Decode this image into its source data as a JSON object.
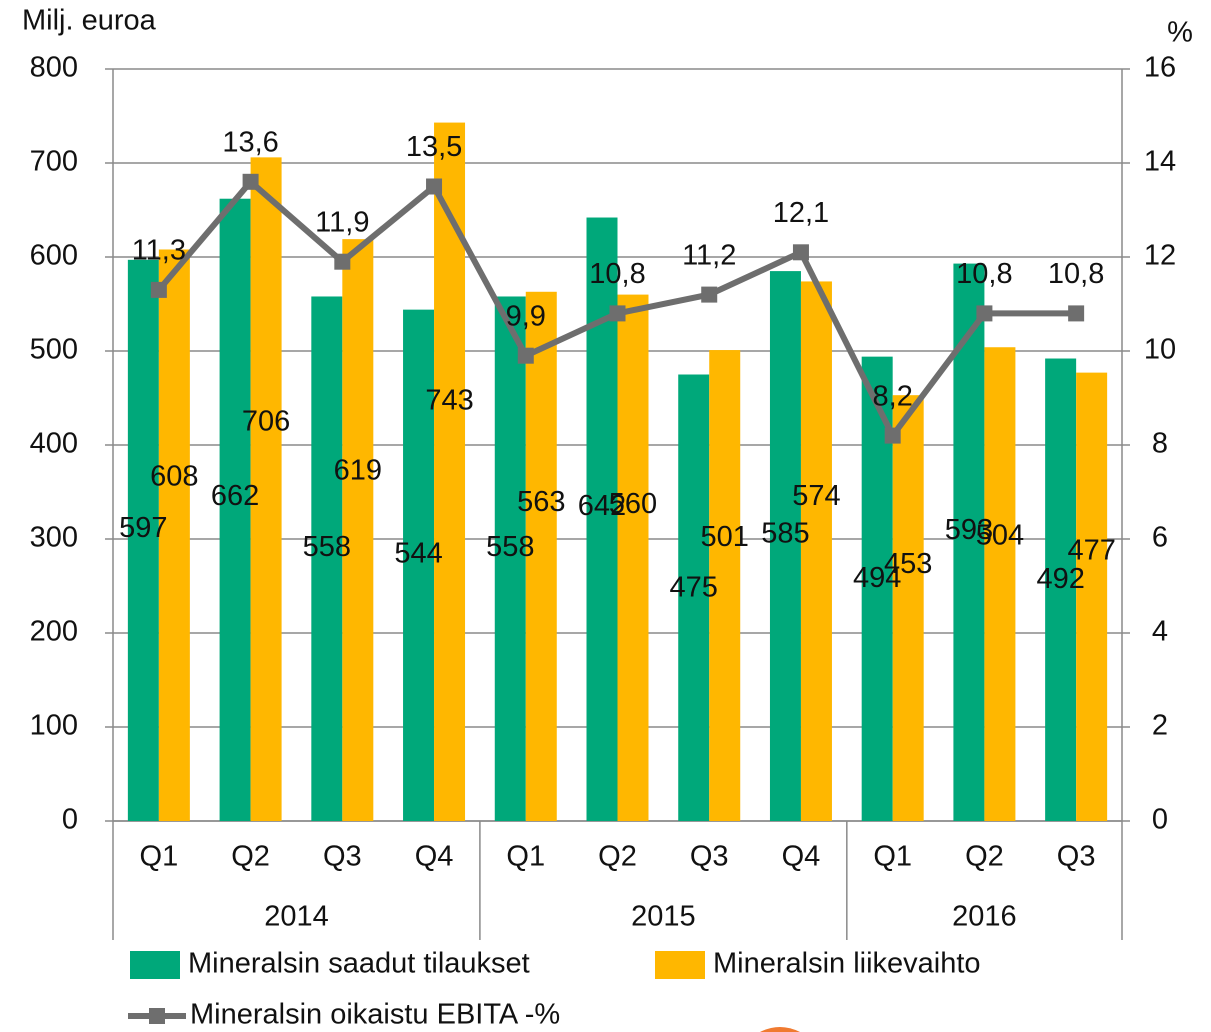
{
  "chart_data": {
    "type": "bar_line",
    "y_axis_title": "Milj. euroa",
    "y2_axis_title": "%",
    "category_groups": [
      {
        "label": "2014",
        "categories": [
          "Q1",
          "Q2",
          "Q3",
          "Q4"
        ]
      },
      {
        "label": "2015",
        "categories": [
          "Q1",
          "Q2",
          "Q3",
          "Q4"
        ]
      },
      {
        "label": "2016",
        "categories": [
          "Q1",
          "Q2",
          "Q3"
        ]
      }
    ],
    "series": [
      {
        "name": "Mineralsin saadut tilaukset",
        "type": "bar",
        "color": "#00a87a",
        "values": [
          597,
          662,
          558,
          544,
          558,
          642,
          475,
          585,
          494,
          593,
          492
        ]
      },
      {
        "name": "Mineralsin liikevaihto",
        "type": "bar",
        "color": "#ffb700",
        "values": [
          608,
          706,
          619,
          743,
          563,
          560,
          501,
          574,
          453,
          504,
          477
        ]
      },
      {
        "name": "Mineralsin oikaistu EBITA -%",
        "type": "line",
        "axis": "y2",
        "color": "#6e6e6e",
        "values": [
          11.3,
          13.6,
          11.9,
          13.5,
          9.9,
          10.8,
          11.2,
          12.1,
          8.2,
          10.8,
          10.8
        ],
        "value_labels": [
          "11,3",
          "13,6",
          "11,9",
          "13,5",
          "9,9",
          "10,8",
          "11,2",
          "12,1",
          "8,2",
          "10,8",
          "10,8"
        ]
      }
    ],
    "ylim": [
      0,
      800
    ],
    "yticks": [
      0,
      100,
      200,
      300,
      400,
      500,
      600,
      700,
      800
    ],
    "y2lim": [
      0,
      16
    ],
    "y2ticks": [
      0,
      2,
      4,
      6,
      8,
      10,
      12,
      14,
      16
    ],
    "grid": true
  }
}
